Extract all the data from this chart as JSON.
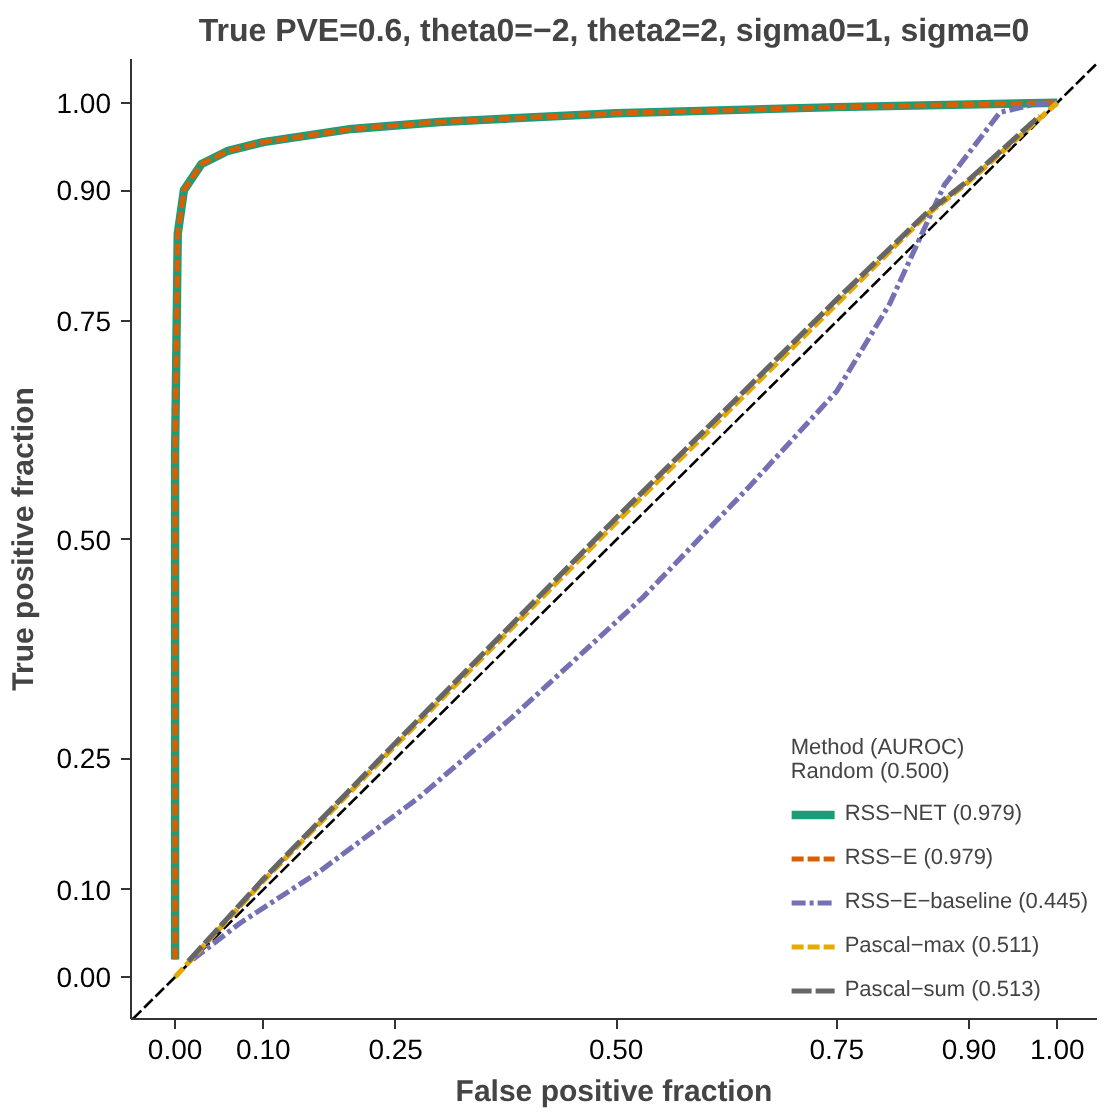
{
  "chart_data": {
    "type": "line",
    "title": "True PVE=0.6, theta0=−2, theta2=2, sigma0=1, sigma=0",
    "xlabel": "False positive fraction",
    "ylabel": "True positive fraction",
    "legend_title": "Method (AUROC)\nRandom (0.500)",
    "xlim": [
      -0.05,
      1.045
    ],
    "ylim": [
      -0.048,
      1.05
    ],
    "xticks": [
      {
        "value": 0,
        "label": "0.00"
      },
      {
        "value": 0.1,
        "label": "0.10"
      },
      {
        "value": 0.25,
        "label": "0.25"
      },
      {
        "value": 0.5,
        "label": "0.50"
      },
      {
        "value": 0.75,
        "label": "0.75"
      },
      {
        "value": 0.9,
        "label": "0.90"
      },
      {
        "value": 1,
        "label": "1.00"
      }
    ],
    "yticks": [
      {
        "value": 0,
        "label": "0.00"
      },
      {
        "value": 0.1,
        "label": "0.10"
      },
      {
        "value": 0.25,
        "label": "0.25"
      },
      {
        "value": 0.5,
        "label": "0.50"
      },
      {
        "value": 0.75,
        "label": "0.75"
      },
      {
        "value": 0.9,
        "label": "0.90"
      },
      {
        "value": 1,
        "label": "1.00"
      }
    ],
    "grid": false,
    "legend": "bottom right",
    "series": [
      {
        "color": "#000000",
        "line_style": "dashed",
        "x": [
          -0.048,
          1.045
        ],
        "values": [
          -0.048,
          1.045
        ]
      },
      {
        "name": "RSS−NET (0.979)",
        "color": "#1b9e77",
        "line_style": "solid",
        "x": [
          0,
          0,
          0.003,
          0.01,
          0.03,
          0.06,
          0.1,
          0.2,
          0.3,
          0.5,
          0.75,
          1
        ],
        "values": [
          0.02,
          0.6,
          0.85,
          0.9,
          0.93,
          0.945,
          0.955,
          0.97,
          0.978,
          0.988,
          0.995,
          1
        ]
      },
      {
        "name": "RSS−E (0.979)",
        "color": "#d95f02",
        "line_style": "dashed",
        "x": [
          0,
          0,
          0.003,
          0.01,
          0.03,
          0.06,
          0.1,
          0.2,
          0.3,
          0.5,
          0.75,
          1
        ],
        "values": [
          0.02,
          0.6,
          0.85,
          0.9,
          0.93,
          0.945,
          0.955,
          0.97,
          0.978,
          0.988,
          0.995,
          1
        ]
      },
      {
        "name": "RSS−E−baseline (0.445)",
        "color": "#7570b3",
        "line_style": "dashdot",
        "x": [
          0.02,
          0.074,
          0.164,
          0.276,
          0.382,
          0.53,
          0.65,
          0.75,
          0.81,
          0.872,
          0.935,
          0.973,
          1
        ],
        "values": [
          0.02,
          0.062,
          0.121,
          0.205,
          0.297,
          0.434,
          0.56,
          0.67,
          0.77,
          0.906,
          0.989,
          0.998,
          1
        ]
      },
      {
        "name": "Pascal−max (0.511)",
        "color": "#e6ab02",
        "line_style": "dashed",
        "x": [
          0.0,
          0.1,
          0.25,
          0.5,
          0.75,
          0.85,
          0.9,
          1
        ],
        "values": [
          0.0,
          0.11,
          0.265,
          0.52,
          0.77,
          0.87,
          0.91,
          1
        ]
      },
      {
        "name": "Pascal−sum (0.513)",
        "color": "#666666",
        "line_style": "longdash",
        "x": [
          0.015,
          0.1,
          0.25,
          0.5,
          0.75,
          0.85,
          0.9,
          0.98
        ],
        "values": [
          0.018,
          0.112,
          0.268,
          0.525,
          0.775,
          0.872,
          0.912,
          0.985
        ]
      }
    ]
  }
}
